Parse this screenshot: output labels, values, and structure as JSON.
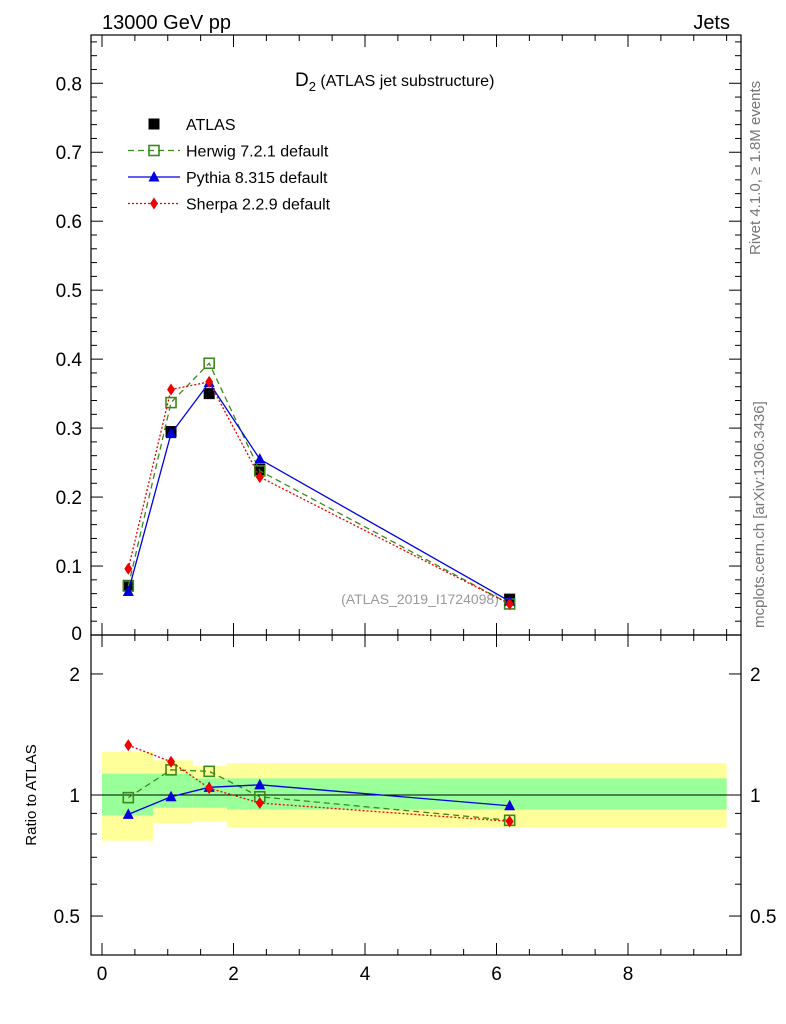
{
  "header": {
    "left": "13000 GeV pp",
    "right": "Jets"
  },
  "side": {
    "rivet": "Rivet 4.1.0, ≥ 1.8M events",
    "mcplots": "mcplots.cern.ch [arXiv:1306.3436]"
  },
  "chart_data": [
    {
      "type": "line",
      "panel": "main",
      "title_main": "D",
      "title_sub": "2",
      "title_rest": " (ATLAS jet substructure)",
      "watermark": "(ATLAS_2019_I1724098)",
      "xlim": [
        -0.2,
        9.6
      ],
      "ylim": [
        0,
        0.87
      ],
      "yticks": [
        0.1,
        0.2,
        0.3,
        0.4,
        0.5,
        0.6,
        0.7,
        0.8
      ],
      "ytick_labels": [
        "0.1",
        "0.2",
        "0.3",
        "0.4",
        "0.5",
        "0.6",
        "0.7",
        "0.8"
      ],
      "ytick_zero_label": "0",
      "x": [
        0.4,
        1.05,
        1.63,
        2.4,
        6.2
      ],
      "series": [
        {
          "name": "ATLAS",
          "values": [
            0.072,
            0.295,
            0.35,
            0.24,
            0.052
          ],
          "color": "#000000",
          "marker": "square",
          "line": "none"
        },
        {
          "name": "Herwig 7.2.1 default",
          "values": [
            0.071,
            0.337,
            0.394,
            0.238,
            0.045
          ],
          "color": "#3a8a1a",
          "marker": "open-square",
          "line": "dashed"
        },
        {
          "name": "Pythia 8.315 default",
          "values": [
            0.063,
            0.292,
            0.366,
            0.255,
            0.049
          ],
          "color": "#0000dd",
          "marker": "triangle",
          "line": "solid"
        },
        {
          "name": "Sherpa 2.2.9 default",
          "values": [
            0.096,
            0.356,
            0.367,
            0.229,
            0.045
          ],
          "color": "#ee0000",
          "marker": "diamond",
          "line": "dotted"
        }
      ]
    },
    {
      "type": "line",
      "panel": "ratio",
      "ylabel": "Ratio to ATLAS",
      "ylim_log": [
        0.4,
        2.5
      ],
      "yticks": [
        0.5,
        1,
        2
      ],
      "ytick_labels": [
        "0.5",
        "1",
        "2"
      ],
      "xticks": [
        0,
        2,
        4,
        6,
        8
      ],
      "xtick_labels": [
        "0",
        "2",
        "4",
        "6",
        "8"
      ],
      "bins": [
        {
          "lo": 0.0,
          "hi": 0.78,
          "green": [
            0.89,
            1.13
          ],
          "yellow": [
            0.77,
            1.28
          ]
        },
        {
          "lo": 0.78,
          "hi": 1.38,
          "green": [
            0.93,
            1.13
          ],
          "yellow": [
            0.85,
            1.22
          ]
        },
        {
          "lo": 1.38,
          "hi": 1.9,
          "green": [
            0.93,
            1.1
          ],
          "yellow": [
            0.86,
            1.18
          ]
        },
        {
          "lo": 1.9,
          "hi": 9.5,
          "green": [
            0.92,
            1.1
          ],
          "yellow": [
            0.83,
            1.2
          ]
        }
      ],
      "x": [
        0.4,
        1.05,
        1.63,
        2.4,
        6.2
      ],
      "series": [
        {
          "name": "Herwig 7.2.1 default",
          "values": [
            0.985,
            1.155,
            1.145,
            0.99,
            0.865
          ],
          "color": "#3a8a1a",
          "marker": "open-square",
          "line": "dashed"
        },
        {
          "name": "Pythia 8.315 default",
          "values": [
            0.895,
            0.99,
            1.045,
            1.06,
            0.94
          ],
          "color": "#0000dd",
          "marker": "triangle",
          "line": "solid"
        },
        {
          "name": "Sherpa 2.2.9 default",
          "values": [
            1.33,
            1.21,
            1.04,
            0.955,
            0.86
          ],
          "color": "#ee0000",
          "marker": "diamond",
          "line": "dotted"
        }
      ]
    }
  ]
}
